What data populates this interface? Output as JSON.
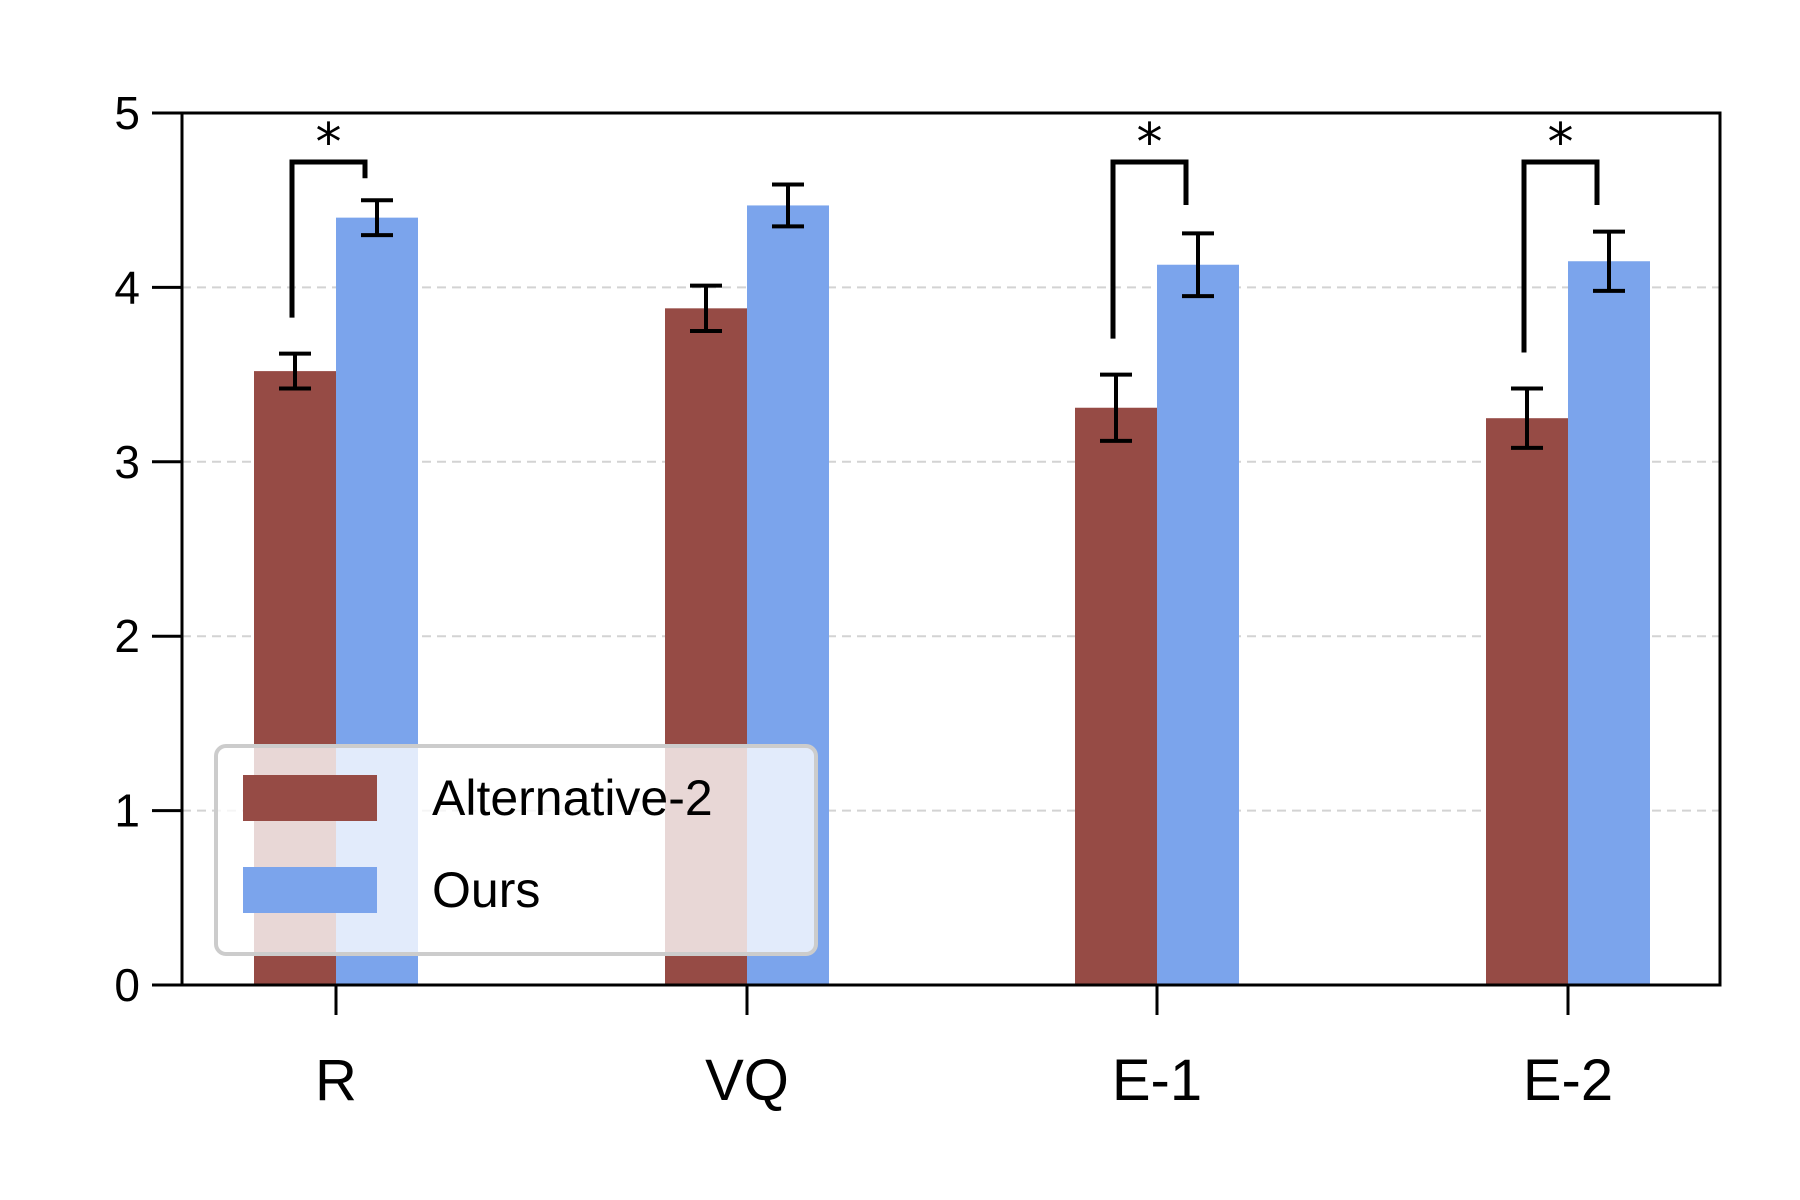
{
  "chart_data": {
    "type": "bar",
    "title": "",
    "xlabel": "",
    "ylabel": "",
    "ylim": [
      0,
      5
    ],
    "yticks": [
      "0",
      "1",
      "2",
      "3",
      "4",
      "5"
    ],
    "grid": "horizontal-dashed",
    "legend_position": "lower-left",
    "categories": [
      "R",
      "VQ",
      "E-1",
      "E-2"
    ],
    "series": [
      {
        "name": "Alternative-2",
        "color": "#964B45",
        "values": [
          3.52,
          3.88,
          3.31,
          3.25
        ],
        "errors": [
          0.1,
          0.13,
          0.19,
          0.17
        ]
      },
      {
        "name": "Ours",
        "color": "#7BA4EC",
        "values": [
          4.4,
          4.47,
          4.13,
          4.15
        ],
        "errors": [
          0.1,
          0.12,
          0.18,
          0.17
        ]
      }
    ],
    "significance": [
      {
        "category": "R",
        "label": "*"
      },
      {
        "category": "E-1",
        "label": "*"
      },
      {
        "category": "E-2",
        "label": "*"
      }
    ]
  }
}
